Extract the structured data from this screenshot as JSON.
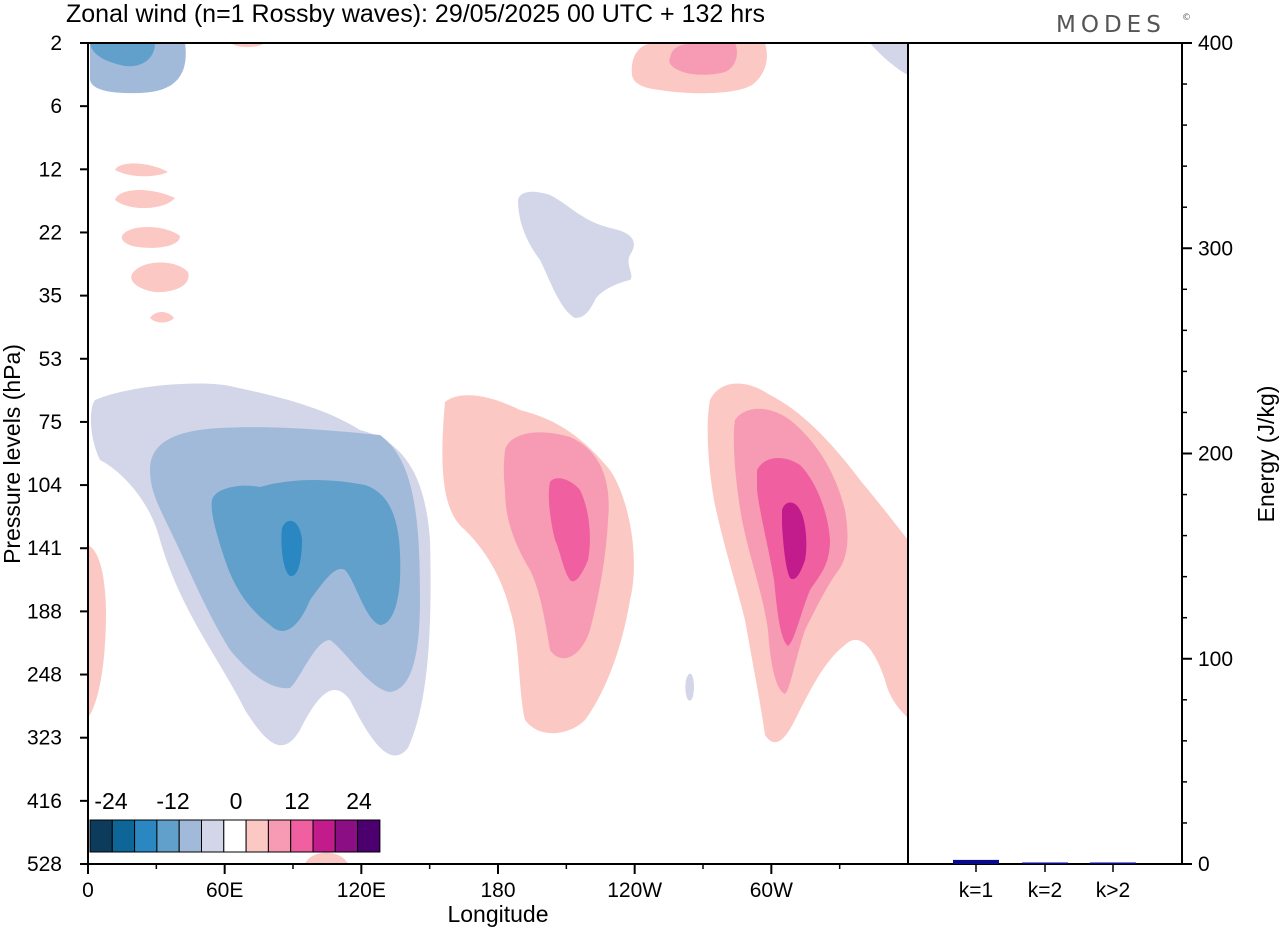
{
  "title": "Zonal wind (n=1 Rossby waves):  29/05/2025  00 UTC  + 132 hrs",
  "brand": "MODES",
  "brand_mark": "©",
  "chart_data": [
    {
      "type": "heatmap",
      "xlabel": "Longitude",
      "ylabel": "Pressure levels (hPa)",
      "x_ticks": [
        "0",
        "60E",
        "120E",
        "180",
        "120W",
        "60W"
      ],
      "x_tick_values": [
        0,
        60,
        120,
        180,
        240,
        300
      ],
      "xlim": [
        0,
        360
      ],
      "y_ticks": [
        "2",
        "6",
        "12",
        "22",
        "35",
        "53",
        "75",
        "104",
        "141",
        "188",
        "248",
        "323",
        "416",
        "528"
      ],
      "y_scale": "log",
      "colorbar": {
        "tick_labels": [
          "-24",
          "-12",
          "0",
          "12",
          "24"
        ],
        "colors": [
          "#0c3b5c",
          "#0e6598",
          "#2a87c2",
          "#62a0cc",
          "#a2bada",
          "#d3d6e8",
          "#ffffff",
          "#fbc8c4",
          "#f79bb4",
          "#f060a0",
          "#c21b8c",
          "#8b0e84",
          "#4c0070"
        ]
      },
      "fields": [
        {
          "sign": "negative",
          "level": 1,
          "center_lon": 95,
          "center_pressure": 141,
          "note": "main negative system"
        },
        {
          "sign": "positive",
          "level": 4,
          "center_lon": 210,
          "center_pressure": 130
        },
        {
          "sign": "positive",
          "level": 4,
          "center_lon": 310,
          "center_pressure": 140
        }
      ]
    },
    {
      "type": "bar",
      "categories": [
        "k=1",
        "k=2",
        "k>2"
      ],
      "values": [
        2,
        0.5,
        0.5
      ],
      "ylabel": "Energy (J/kg)",
      "ylim": [
        0,
        400
      ],
      "y_ticks": [
        "0",
        "100",
        "200",
        "300",
        "400"
      ],
      "bar_color": "#0a0a8c"
    }
  ]
}
